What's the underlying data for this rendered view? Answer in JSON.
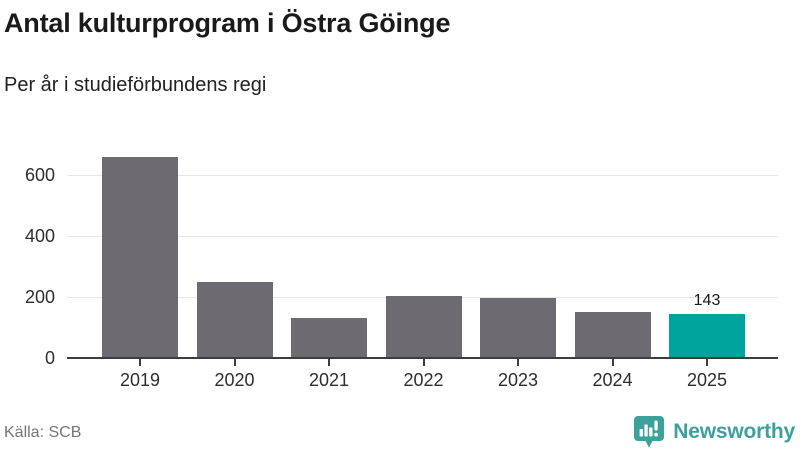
{
  "chart_data": {
    "type": "bar",
    "title": "Antal kulturprogram i Östra Göinge",
    "subtitle": "Per år i studieförbundens regi",
    "categories": [
      "2019",
      "2020",
      "2021",
      "2022",
      "2023",
      "2024",
      "2025"
    ],
    "values": [
      660,
      250,
      130,
      204,
      196,
      150,
      143
    ],
    "yticks": [
      0,
      200,
      400,
      600
    ],
    "ylim": [
      0,
      731
    ],
    "grid": true,
    "legend": false,
    "xlabel": "",
    "ylabel": "",
    "bar_color": "#6e6a72",
    "highlight": {
      "index": 6,
      "color": "#00a49c"
    },
    "value_label": {
      "index": 6,
      "text": "143"
    },
    "source": "Källa: SCB"
  },
  "footer": {
    "brand": "Newsworthy",
    "brand_color": "#3da19b"
  }
}
